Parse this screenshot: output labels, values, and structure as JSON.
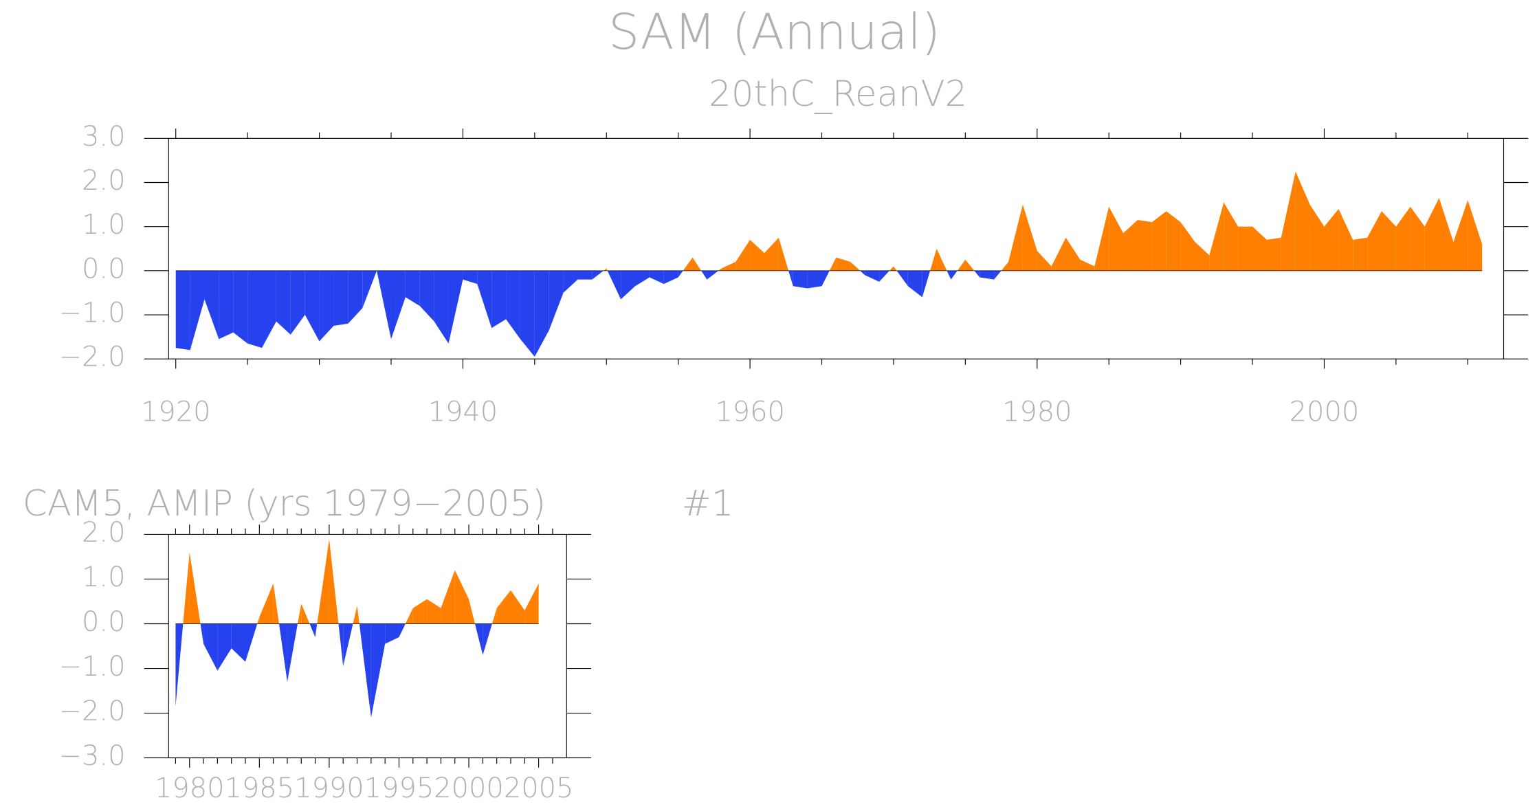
{
  "title": "SAM (Annual)",
  "panel_label": "#1",
  "chart_data": [
    {
      "type": "area",
      "title": "20thC_ReanV2",
      "x": [
        1920,
        1921,
        1922,
        1923,
        1924,
        1925,
        1926,
        1927,
        1928,
        1929,
        1930,
        1931,
        1932,
        1933,
        1934,
        1935,
        1936,
        1937,
        1938,
        1939,
        1940,
        1941,
        1942,
        1943,
        1944,
        1945,
        1946,
        1947,
        1948,
        1949,
        1950,
        1951,
        1952,
        1953,
        1954,
        1955,
        1956,
        1957,
        1958,
        1959,
        1960,
        1961,
        1962,
        1963,
        1964,
        1965,
        1966,
        1967,
        1968,
        1969,
        1970,
        1971,
        1972,
        1973,
        1974,
        1975,
        1976,
        1977,
        1978,
        1979,
        1980,
        1981,
        1982,
        1983,
        1984,
        1985,
        1986,
        1987,
        1988,
        1989,
        1990,
        1991,
        1992,
        1993,
        1994,
        1995,
        1996,
        1997,
        1998,
        1999,
        2000,
        2001,
        2002,
        2003,
        2004,
        2005,
        2006,
        2007,
        2008,
        2009,
        2010,
        2011
      ],
      "values": [
        -1.75,
        -1.8,
        -0.65,
        -1.55,
        -1.4,
        -1.65,
        -1.75,
        -1.15,
        -1.45,
        -1.0,
        -1.6,
        -1.25,
        -1.2,
        -0.85,
        0.0,
        -1.55,
        -0.6,
        -0.8,
        -1.15,
        -1.65,
        -0.2,
        -0.3,
        -1.3,
        -1.1,
        -1.55,
        -1.95,
        -1.35,
        -0.5,
        -0.2,
        -0.2,
        0.05,
        -0.65,
        -0.35,
        -0.15,
        -0.3,
        -0.15,
        0.3,
        -0.2,
        0.05,
        0.2,
        0.7,
        0.4,
        0.75,
        -0.35,
        -0.4,
        -0.35,
        0.3,
        0.2,
        -0.1,
        -0.25,
        0.1,
        -0.35,
        -0.6,
        0.5,
        -0.2,
        0.25,
        -0.15,
        -0.2,
        0.2,
        1.5,
        0.45,
        0.1,
        0.75,
        0.25,
        0.1,
        1.45,
        0.85,
        1.15,
        1.1,
        1.35,
        1.1,
        0.65,
        0.35,
        1.55,
        1.0,
        1.0,
        0.7,
        0.75,
        2.25,
        1.5,
        1.0,
        1.4,
        0.7,
        0.75,
        1.35,
        1.0,
        1.45,
        1.0,
        1.65,
        0.65,
        1.6,
        0.6
      ],
      "color_above": "#ff8000",
      "color_below": "#2642ee",
      "xlim": [
        1919.5,
        2012.5
      ],
      "xticks": [
        1920,
        1940,
        1960,
        1980,
        2000
      ],
      "xminorticks": [
        1925,
        1930,
        1935,
        1945,
        1950,
        1955,
        1965,
        1970,
        1975,
        1985,
        1990,
        1995,
        2005,
        2010
      ],
      "ylim": [
        -2.0,
        3.0
      ],
      "yticks": [
        {
          "value": -2,
          "label": "−2.0"
        },
        {
          "value": -1,
          "label": "−1.0"
        },
        {
          "value": 0,
          "label": "0.0"
        },
        {
          "value": 1,
          "label": "1.0"
        },
        {
          "value": 2,
          "label": "2.0"
        },
        {
          "value": 3,
          "label": "3.0"
        }
      ]
    },
    {
      "type": "area",
      "title": "CAM5, AMIP (yrs 1979−2005)",
      "x": [
        1979,
        1980,
        1981,
        1982,
        1983,
        1984,
        1985,
        1986,
        1987,
        1988,
        1989,
        1990,
        1991,
        1992,
        1993,
        1994,
        1995,
        1996,
        1997,
        1998,
        1999,
        2000,
        2001,
        2002,
        2003,
        2004,
        2005
      ],
      "values": [
        -1.85,
        1.6,
        -0.45,
        -1.05,
        -0.55,
        -0.85,
        0.15,
        0.9,
        -1.3,
        0.45,
        -0.3,
        1.9,
        -0.95,
        0.4,
        -2.1,
        -0.45,
        -0.3,
        0.35,
        0.55,
        0.35,
        1.2,
        0.55,
        -0.7,
        0.35,
        0.75,
        0.3,
        0.9
      ],
      "color_above": "#ff8000",
      "color_below": "#2642ee",
      "xlim": [
        1978.5,
        2007.0
      ],
      "xticks": [
        1980,
        1985,
        1990,
        1995,
        2000,
        2005
      ],
      "xminorticks": [
        1979,
        1981,
        1982,
        1983,
        1984,
        1986,
        1987,
        1988,
        1989,
        1991,
        1992,
        1993,
        1994,
        1996,
        1997,
        1998,
        1999,
        2001,
        2002,
        2003,
        2004,
        2006
      ],
      "ylim": [
        -3.0,
        2.0
      ],
      "yticks": [
        {
          "value": -3,
          "label": "−3.0"
        },
        {
          "value": -2,
          "label": "−2.0"
        },
        {
          "value": -1,
          "label": "−1.0"
        },
        {
          "value": 0,
          "label": "0.0"
        },
        {
          "value": 1,
          "label": "1.0"
        },
        {
          "value": 2,
          "label": "2.0"
        }
      ]
    }
  ]
}
